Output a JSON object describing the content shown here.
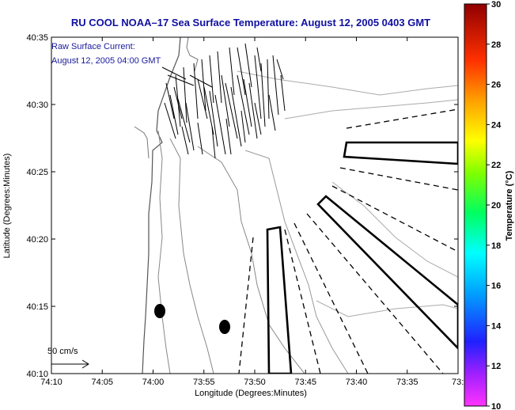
{
  "title": "RU COOL  NOAA–17  Sea Surface Temperature:  August 12, 2005 0403 GMT",
  "annotation": {
    "line1": "Raw Surface Current:",
    "line2": "August 12, 2005 04:00 GMT"
  },
  "scale_label": "50 cm/s",
  "chart_data": {
    "type": "map",
    "xlabel": "Longitude (Degrees:Minutes)",
    "ylabel": "Latitude (Degrees:Minutes)",
    "x_ticks": [
      "74:10",
      "74:05",
      "74:00",
      "73:55",
      "73:50",
      "73:45",
      "73:40",
      "73:35",
      "73:3"
    ],
    "y_ticks": [
      "40:35",
      "40:30",
      "40:25",
      "40:20",
      "40:15",
      "40:10"
    ],
    "colorbar": {
      "label": "Temperature (°C)",
      "ticks": [
        "30",
        "28",
        "26",
        "24",
        "22",
        "20",
        "18",
        "16",
        "14",
        "12",
        "10"
      ],
      "range": [
        10,
        30
      ]
    }
  }
}
